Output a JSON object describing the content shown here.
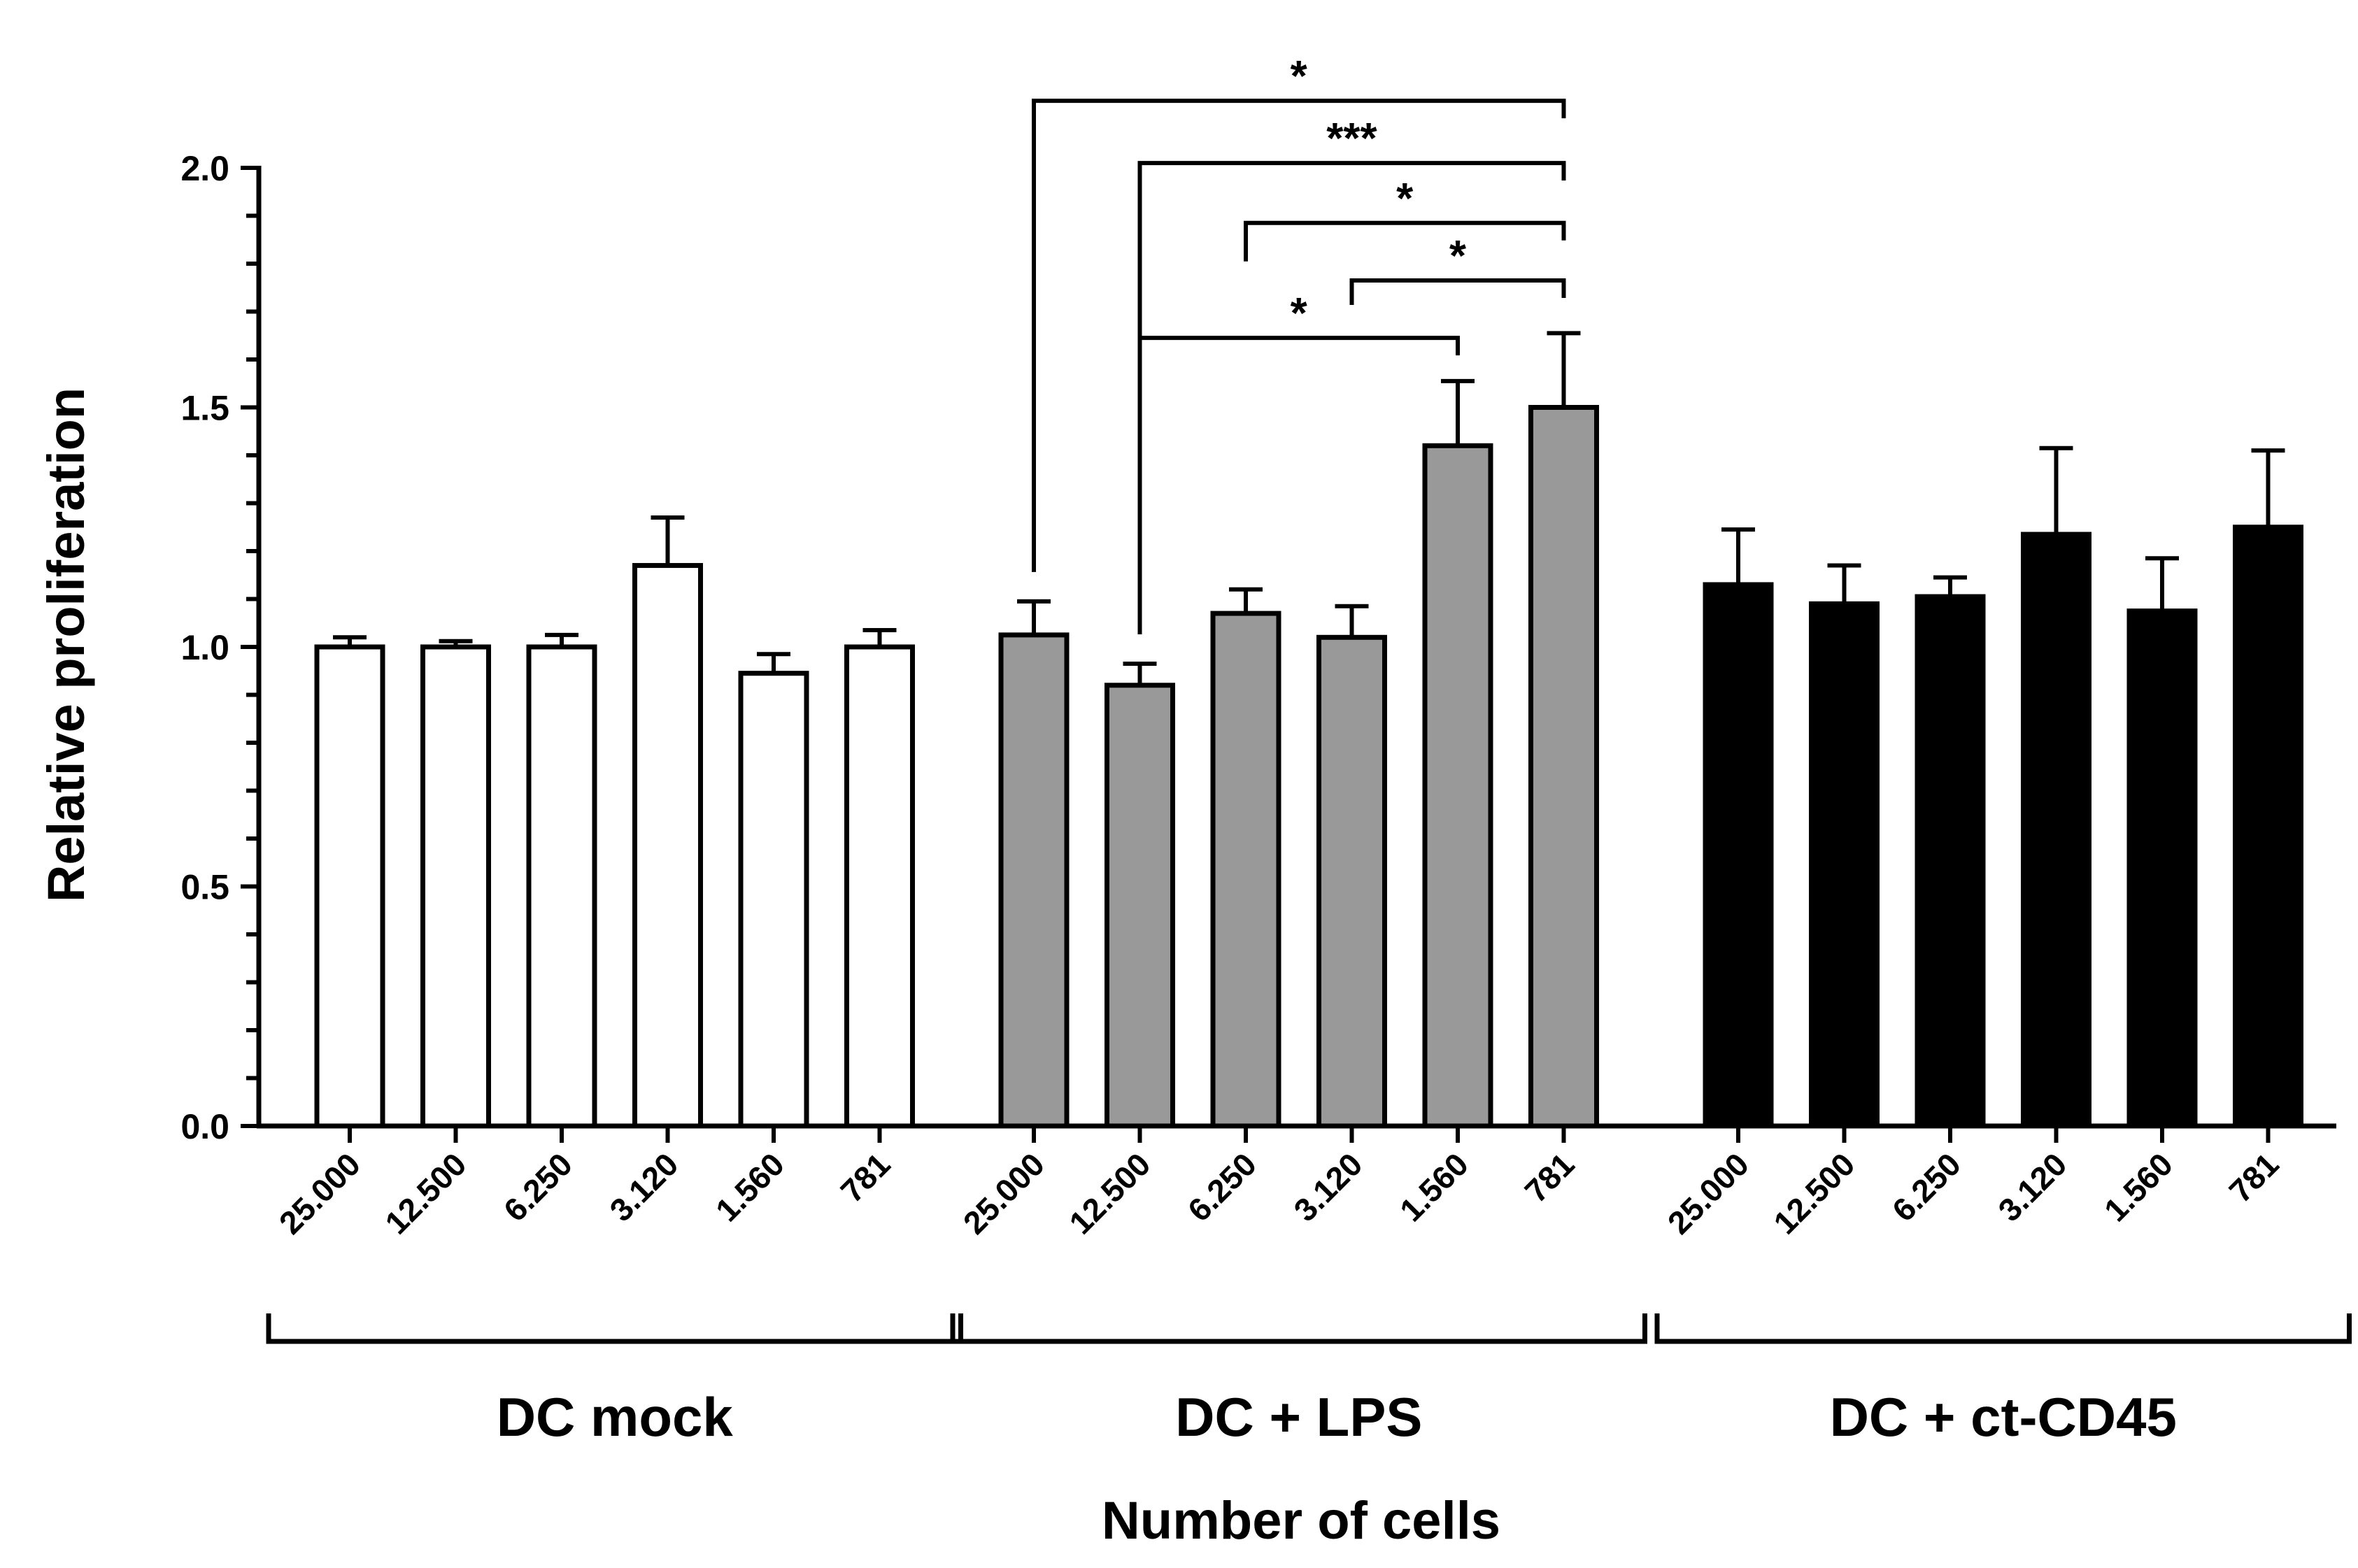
{
  "chart_data": {
    "type": "bar",
    "title": "",
    "xlabel": "Number of cells",
    "ylabel": "Relative proliferation",
    "ylim": [
      0,
      2.0
    ],
    "yticks": [
      "0.0",
      "0.5",
      "1.0",
      "1.5",
      "2.0"
    ],
    "categories": [
      "25.000",
      "12.500",
      "6.250",
      "3.120",
      "1.560",
      "781"
    ],
    "series": [
      {
        "name": "DC mock",
        "color": "#ffffff",
        "values": [
          1.0,
          1.0,
          1.0,
          1.17,
          0.945,
          1.0
        ],
        "errors": [
          0.02,
          0.012,
          0.025,
          0.1,
          0.04,
          0.035
        ]
      },
      {
        "name": "DC + LPS",
        "color": "#999999",
        "values": [
          1.025,
          0.92,
          1.07,
          1.02,
          1.42,
          1.5
        ],
        "errors": [
          0.07,
          0.045,
          0.05,
          0.065,
          0.135,
          0.155
        ]
      },
      {
        "name": "DC + ct-CD45",
        "color": "#000000",
        "values": [
          1.13,
          1.09,
          1.105,
          1.235,
          1.075,
          1.25
        ],
        "errors": [
          0.115,
          0.08,
          0.04,
          0.18,
          0.11,
          0.16
        ]
      }
    ],
    "significance": [
      {
        "group": 1,
        "from": 0,
        "to": 5,
        "label": "*",
        "level": 2.14
      },
      {
        "group": 1,
        "from": 1,
        "to": 5,
        "label": "***",
        "level": 2.01
      },
      {
        "group": 1,
        "from": 2,
        "to": 5,
        "label": "*",
        "level": 1.885
      },
      {
        "group": 1,
        "from": 3,
        "to": 5,
        "label": "*",
        "level": 1.765
      },
      {
        "group": 1,
        "from": 1,
        "to": 4,
        "label": "*",
        "level": 1.645
      }
    ]
  }
}
